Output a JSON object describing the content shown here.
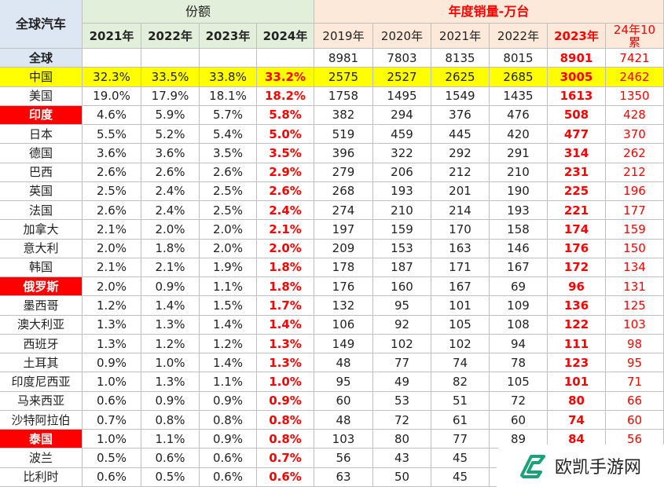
{
  "header": {
    "corner": "全球汽车",
    "share_group": "份额",
    "sales_group": "年度销量-万台",
    "share_years": [
      "2021年",
      "2022年",
      "2023年",
      "2024年"
    ],
    "sales_years": [
      "2019年",
      "2020年",
      "2021年",
      "2022年",
      "2023年",
      "24年10累"
    ]
  },
  "rows": [
    {
      "cells": [
        "全球",
        null,
        null,
        null,
        null,
        "8981",
        "7803",
        "8135",
        "8015",
        "8901",
        "7421"
      ],
      "style": "total"
    },
    {
      "cells": [
        "中国",
        "32.3%",
        "33.5%",
        "33.8%",
        "33.2%",
        "2575",
        "2527",
        "2625",
        "2685",
        "3005",
        "2462"
      ],
      "style": "yellow"
    },
    {
      "cells": [
        "美国",
        "19.0%",
        "17.9%",
        "18.1%",
        "18.2%",
        "1758",
        "1495",
        "1549",
        "1435",
        "1613",
        "1350"
      ]
    },
    {
      "cells": [
        "印度",
        "4.6%",
        "5.9%",
        "5.7%",
        "5.8%",
        "382",
        "294",
        "376",
        "476",
        "508",
        "428"
      ],
      "style": "red"
    },
    {
      "cells": [
        "日本",
        "5.5%",
        "5.2%",
        "5.4%",
        "5.0%",
        "519",
        "459",
        "445",
        "420",
        "477",
        "370"
      ]
    },
    {
      "cells": [
        "德国",
        "3.6%",
        "3.6%",
        "3.5%",
        "3.5%",
        "396",
        "322",
        "292",
        "291",
        "314",
        "262"
      ]
    },
    {
      "cells": [
        "巴西",
        "2.6%",
        "2.6%",
        "2.6%",
        "2.9%",
        "279",
        "206",
        "212",
        "210",
        "231",
        "212"
      ]
    },
    {
      "cells": [
        "英国",
        "2.5%",
        "2.4%",
        "2.5%",
        "2.6%",
        "268",
        "193",
        "201",
        "190",
        "225",
        "196"
      ]
    },
    {
      "cells": [
        "法国",
        "2.6%",
        "2.4%",
        "2.5%",
        "2.4%",
        "274",
        "210",
        "214",
        "193",
        "221",
        "177"
      ]
    },
    {
      "cells": [
        "加拿大",
        "2.1%",
        "2.0%",
        "2.0%",
        "2.1%",
        "197",
        "159",
        "170",
        "158",
        "174",
        "159"
      ]
    },
    {
      "cells": [
        "意大利",
        "2.0%",
        "1.8%",
        "2.0%",
        "2.0%",
        "209",
        "153",
        "163",
        "146",
        "176",
        "150"
      ]
    },
    {
      "cells": [
        "韩国",
        "2.1%",
        "2.1%",
        "1.9%",
        "1.8%",
        "178",
        "187",
        "171",
        "167",
        "172",
        "134"
      ]
    },
    {
      "cells": [
        "俄罗斯",
        "2.0%",
        "0.9%",
        "1.1%",
        "1.8%",
        "176",
        "160",
        "167",
        "69",
        "96",
        "131"
      ],
      "style": "red"
    },
    {
      "cells": [
        "墨西哥",
        "1.2%",
        "1.4%",
        "1.5%",
        "1.7%",
        "132",
        "95",
        "101",
        "109",
        "136",
        "125"
      ]
    },
    {
      "cells": [
        "澳大利亚",
        "1.3%",
        "1.3%",
        "1.4%",
        "1.4%",
        "106",
        "92",
        "105",
        "108",
        "122",
        "103"
      ]
    },
    {
      "cells": [
        "西班牙",
        "1.3%",
        "1.2%",
        "1.2%",
        "1.3%",
        "149",
        "102",
        "102",
        "94",
        "111",
        "98"
      ]
    },
    {
      "cells": [
        "土耳其",
        "0.9%",
        "1.0%",
        "1.4%",
        "1.3%",
        "48",
        "77",
        "74",
        "78",
        "123",
        "95"
      ]
    },
    {
      "cells": [
        "印度尼西亚",
        "1.0%",
        "1.3%",
        "1.1%",
        "1.0%",
        "95",
        "49",
        "82",
        "105",
        "101",
        "71"
      ]
    },
    {
      "cells": [
        "马来西亚",
        "0.6%",
        "0.9%",
        "0.9%",
        "0.9%",
        "60",
        "53",
        "51",
        "72",
        "80",
        "66"
      ]
    },
    {
      "cells": [
        "沙特阿拉伯",
        "0.7%",
        "0.8%",
        "0.8%",
        "0.8%",
        "48",
        "72",
        "61",
        "60",
        "74",
        "60"
      ]
    },
    {
      "cells": [
        "泰国",
        "1.0%",
        "1.1%",
        "0.9%",
        "0.8%",
        "103",
        "80",
        "77",
        "89",
        "84",
        "56"
      ],
      "style": "red"
    },
    {
      "cells": [
        "波兰",
        "0.5%",
        "0.6%",
        "0.6%",
        "0.7%",
        "56",
        "43",
        "45",
        null,
        null,
        null
      ]
    },
    {
      "cells": [
        "比利时",
        "0.6%",
        "0.5%",
        "0.6%",
        "0.6%",
        "63",
        "50",
        "45",
        null,
        null,
        null
      ]
    }
  ],
  "watermark": "欧凯手游网"
}
